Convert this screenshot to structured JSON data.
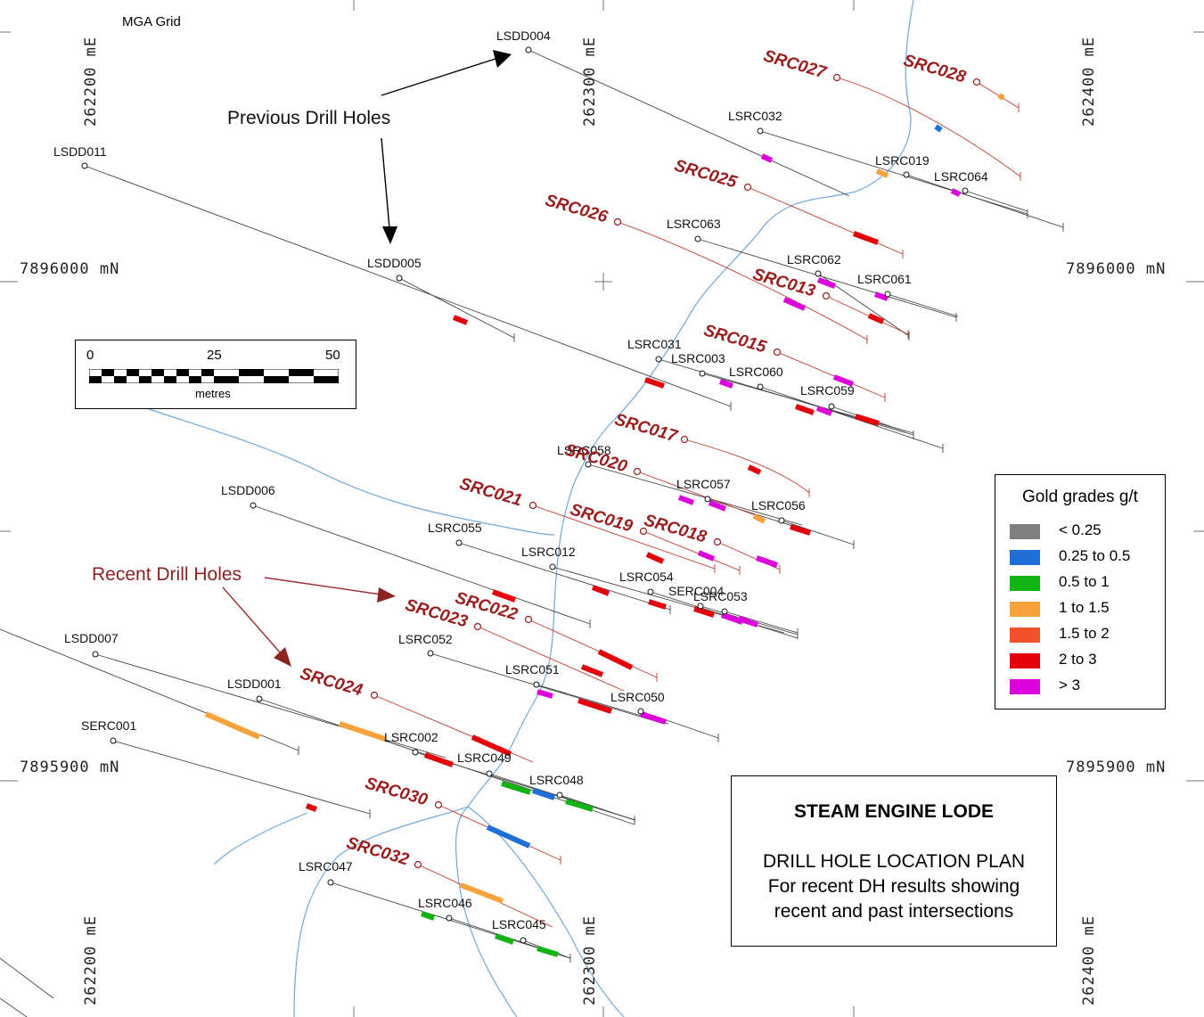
{
  "grid": {
    "name": "MGA Grid",
    "easting_unit": "mE",
    "northing_unit": "mN",
    "eastings": [
      "262200",
      "262300",
      "262400"
    ],
    "northings": [
      "7896000",
      "7895900"
    ]
  },
  "scale_bar": {
    "ticks": [
      "0",
      "25",
      "50"
    ],
    "unit": "metres"
  },
  "callouts": {
    "previous": "Previous Drill Holes",
    "recent": "Recent Drill Holes"
  },
  "legend": {
    "title": "Gold grades g/t",
    "items": [
      {
        "label": "< 0.25",
        "color": "#808080"
      },
      {
        "label": "0.25 to 0.5",
        "color": "#1f6fd6"
      },
      {
        "label": "0.5 to 1",
        "color": "#12b312"
      },
      {
        "label": "1 to 1.5",
        "color": "#f7a23c"
      },
      {
        "label": "1.5 to 2",
        "color": "#f0522a"
      },
      {
        "label": "2 to 3",
        "color": "#e3000b"
      },
      {
        "label": "> 3",
        "color": "#dc00dc"
      }
    ]
  },
  "title_block": {
    "title": "STEAM ENGINE LODE",
    "subtitle_lines": [
      "DRILL HOLE LOCATION PLAN",
      "For recent DH results showing",
      "recent and past intersections"
    ]
  },
  "colors": {
    "recent": "#9b1c1c",
    "creek": "#6fa8dc",
    "previous_trace": "#333333"
  },
  "previous_holes": [
    "LSDD004",
    "LSRC032",
    "LSRC019",
    "LSRC064",
    "LSDD011",
    "LSRC063",
    "LSDD005",
    "LSRC062",
    "LSRC061",
    "LSRC031",
    "LSRC003",
    "LSRC060",
    "LSRC059",
    "LSRC058",
    "LSRC057",
    "LSRC056",
    "LSDD006",
    "LSRC055",
    "LSRC012",
    "LSRC054",
    "SERC004",
    "LSRC053",
    "LSDD007",
    "LSRC052",
    "LSRC051",
    "LSRC050",
    "LSDD001",
    "SERC001",
    "LSRC002",
    "LSRC049",
    "LSRC048",
    "LSRC047",
    "LSRC046",
    "LSRC045"
  ],
  "recent_holes": [
    "SRC027",
    "SRC028",
    "SRC025",
    "SRC026",
    "SRC013",
    "SRC015",
    "SRC017",
    "SRC020",
    "SRC021",
    "SRC019",
    "SRC018",
    "SRC022",
    "SRC023",
    "SRC024",
    "SRC030",
    "SRC032"
  ]
}
